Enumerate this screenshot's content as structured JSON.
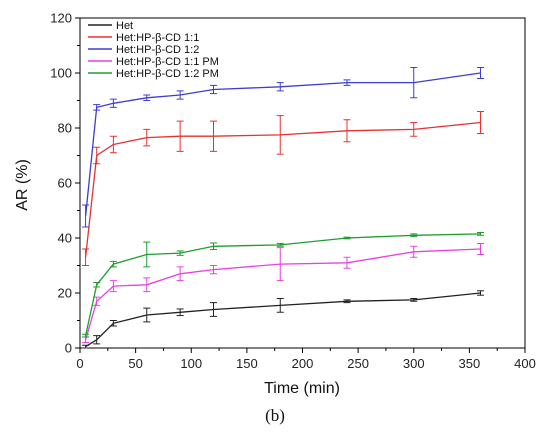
{
  "chart_data": {
    "type": "line",
    "xlabel": "Time (min)",
    "ylabel": "AR (%)",
    "xlim": [
      0,
      400
    ],
    "ylim": [
      0,
      120
    ],
    "xticks": [
      0,
      50,
      100,
      150,
      200,
      250,
      300,
      350,
      400
    ],
    "yticks": [
      0,
      20,
      40,
      60,
      80,
      100,
      120
    ],
    "grid": false,
    "legend_position": "top-left",
    "caption": "(b)",
    "series": [
      {
        "name": "Het",
        "color": "#222222",
        "x": [
          5,
          15,
          30,
          60,
          90,
          120,
          180,
          240,
          300,
          360
        ],
        "y": [
          0.5,
          3,
          9,
          12,
          13,
          14,
          15.5,
          17,
          17.5,
          20
        ],
        "err": [
          0.5,
          1.5,
          1,
          2.5,
          1.2,
          2.5,
          2.5,
          0.5,
          0.5,
          0.8
        ]
      },
      {
        "name": "Het:HP-β-CD 1:1",
        "color": "#e8312f",
        "x": [
          5,
          15,
          30,
          60,
          90,
          120,
          180,
          240,
          300,
          360
        ],
        "y": [
          33,
          70,
          74,
          76.5,
          77,
          77,
          77.5,
          79,
          79.5,
          82
        ],
        "err": [
          3,
          3,
          3,
          3,
          5.5,
          5.5,
          7,
          4,
          2.5,
          4
        ]
      },
      {
        "name": "Het:HP-β-CD 1:2",
        "color": "#3c3cd6",
        "x": [
          5,
          15,
          30,
          60,
          90,
          120,
          180,
          240,
          300,
          360
        ],
        "y": [
          48,
          87.5,
          89,
          91,
          92,
          94,
          95,
          96.5,
          96.5,
          100
        ],
        "err": [
          4,
          1,
          1.5,
          1,
          1.5,
          1.5,
          1.5,
          1,
          5.5,
          2
        ]
      },
      {
        "name": "Het:HP-β-CD 1:1 PM",
        "color": "#e640e6",
        "x": [
          5,
          15,
          30,
          60,
          90,
          120,
          180,
          240,
          300,
          360
        ],
        "y": [
          3,
          17,
          22.5,
          23,
          27,
          28.5,
          30.5,
          31,
          35,
          36
        ],
        "err": [
          1,
          1.5,
          2,
          2.5,
          2.5,
          1.5,
          6,
          2,
          2,
          2
        ]
      },
      {
        "name": "Het:HP-β-CD 1:2 PM",
        "color": "#1e9e2e",
        "x": [
          5,
          15,
          30,
          60,
          90,
          120,
          180,
          240,
          300,
          360
        ],
        "y": [
          4.5,
          23,
          30.5,
          34,
          34.5,
          37,
          37.5,
          40,
          41,
          41.5
        ],
        "err": [
          0.5,
          0.8,
          1,
          4.5,
          0.8,
          1.2,
          0.5,
          0.3,
          0.5,
          0.5
        ]
      }
    ]
  }
}
